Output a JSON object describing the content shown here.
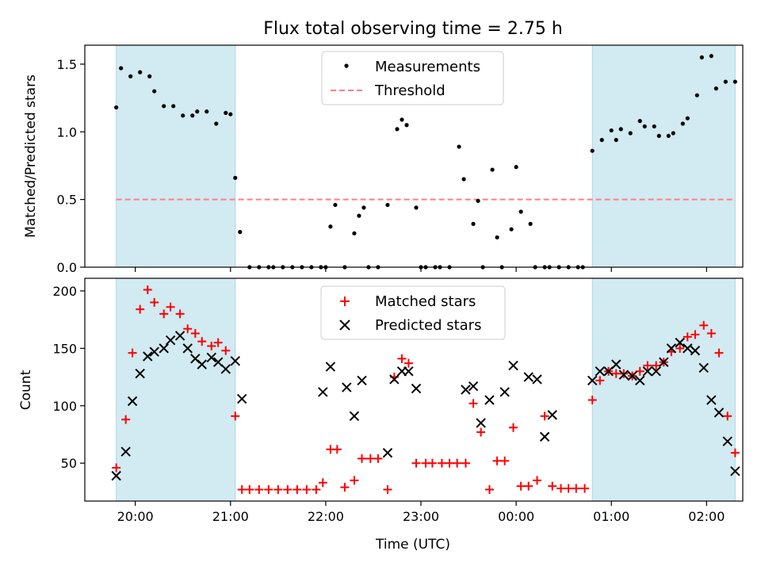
{
  "chart_data": [
    {
      "type": "scatter",
      "title": "Flux total observing time = 2.75 h",
      "xlabel": "",
      "ylabel": "Matched/Predicted stars",
      "xlim": [
        -0.53,
        6.38
      ],
      "ylim": [
        0,
        1.64
      ],
      "yticks": [
        0.0,
        0.5,
        1.0,
        1.5
      ],
      "ytick_labels": [
        "0.0",
        "0.5",
        "1.0",
        "1.5"
      ],
      "xticks": [
        0,
        1,
        2,
        3,
        4,
        5,
        6
      ],
      "grid": false,
      "legend_position": "upper center",
      "shaded_intervals": [
        [
          -0.2,
          1.05
        ],
        [
          4.8,
          6.3
        ]
      ],
      "shade_color": "#add8e6",
      "threshold": {
        "name": "Threshold",
        "value": 0.5,
        "x_range": [
          -0.2,
          6.3
        ],
        "color": "#ff7f7f",
        "style": "dashed"
      },
      "series": [
        {
          "name": "Measurements",
          "marker": "dot",
          "color": "#000000",
          "x": [
            -0.2,
            -0.15,
            -0.05,
            0.05,
            0.15,
            0.2,
            0.3,
            0.4,
            0.5,
            0.6,
            0.65,
            0.75,
            0.85,
            0.95,
            1.0,
            1.05,
            1.1,
            1.2,
            1.3,
            1.4,
            1.45,
            1.55,
            1.65,
            1.75,
            1.85,
            1.95,
            2.0,
            2.05,
            2.1,
            2.2,
            2.3,
            2.35,
            2.4,
            2.45,
            2.55,
            2.65,
            2.75,
            2.8,
            2.85,
            2.95,
            3.0,
            3.05,
            3.15,
            3.2,
            3.3,
            3.4,
            3.45,
            3.55,
            3.6,
            3.65,
            3.75,
            3.8,
            3.85,
            3.95,
            4.0,
            4.05,
            4.15,
            4.2,
            4.3,
            4.35,
            4.45,
            4.55,
            4.65,
            4.7,
            4.8,
            4.9,
            5.0,
            5.05,
            5.1,
            5.2,
            5.3,
            5.35,
            5.45,
            5.5,
            5.6,
            5.65,
            5.75,
            5.8,
            5.9,
            5.95,
            6.05,
            6.1,
            6.2,
            6.3
          ],
          "y": [
            1.18,
            1.47,
            1.41,
            1.44,
            1.41,
            1.3,
            1.19,
            1.19,
            1.12,
            1.12,
            1.15,
            1.15,
            1.06,
            1.14,
            1.13,
            0.66,
            0.26,
            0,
            0,
            0,
            0,
            0,
            0,
            0,
            0,
            0,
            0,
            0.3,
            0.46,
            0,
            0.25,
            0.38,
            0.44,
            0,
            0,
            0.46,
            1.02,
            1.09,
            1.05,
            0.44,
            0,
            0,
            0,
            0,
            0,
            0.89,
            0.65,
            0.32,
            0.49,
            0,
            0.72,
            0.22,
            0,
            0.28,
            0.74,
            0.41,
            0.32,
            0,
            0,
            0,
            0,
            0,
            0,
            0,
            0.86,
            0.94,
            1.01,
            0.94,
            1.02,
            0.99,
            1.08,
            1.04,
            1.04,
            0.97,
            0.97,
            0.99,
            1.06,
            1.1,
            1.27,
            1.55,
            1.56,
            1.32,
            1.37,
            1.37
          ]
        }
      ]
    },
    {
      "type": "scatter",
      "title": "",
      "xlabel": "Time (UTC)",
      "ylabel": "Count",
      "xlim": [
        -0.53,
        6.38
      ],
      "ylim": [
        17,
        211
      ],
      "yticks": [
        50,
        100,
        150,
        200
      ],
      "ytick_labels": [
        "50",
        "100",
        "150",
        "200"
      ],
      "xticks": [
        0,
        1,
        2,
        3,
        4,
        5,
        6
      ],
      "xtick_labels": [
        "20:00",
        "21:00",
        "22:00",
        "23:00",
        "00:00",
        "01:00",
        "02:00"
      ],
      "grid": false,
      "legend_position": "upper center",
      "shaded_intervals": [
        [
          -0.2,
          1.05
        ],
        [
          4.8,
          6.3
        ]
      ],
      "shade_color": "#add8e6",
      "series": [
        {
          "name": "Matched stars",
          "marker": "plus",
          "color": "#ff0000",
          "x": [
            -0.2,
            -0.1,
            -0.03,
            0.05,
            0.13,
            0.2,
            0.3,
            0.37,
            0.47,
            0.55,
            0.63,
            0.7,
            0.8,
            0.87,
            0.95,
            1.05,
            1.12,
            1.2,
            1.3,
            1.4,
            1.5,
            1.6,
            1.7,
            1.8,
            1.9,
            1.97,
            2.05,
            2.12,
            2.2,
            2.3,
            2.38,
            2.47,
            2.55,
            2.65,
            2.72,
            2.8,
            2.87,
            2.95,
            3.05,
            3.12,
            3.22,
            3.3,
            3.38,
            3.47,
            3.55,
            3.63,
            3.72,
            3.8,
            3.88,
            3.97,
            4.05,
            4.13,
            4.22,
            4.3,
            4.38,
            4.47,
            4.55,
            4.63,
            4.72,
            4.8,
            4.88,
            4.97,
            5.05,
            5.13,
            5.22,
            5.3,
            5.38,
            5.47,
            5.55,
            5.63,
            5.72,
            5.8,
            5.88,
            5.97,
            6.05,
            6.13,
            6.22,
            6.3
          ],
          "y": [
            46,
            88,
            146,
            184,
            201,
            190,
            180,
            186,
            180,
            167,
            163,
            156,
            152,
            155,
            148,
            91,
            27,
            27,
            27,
            27,
            27,
            27,
            27,
            27,
            27,
            33,
            62,
            62,
            29,
            35,
            54,
            54,
            54,
            27,
            125,
            141,
            137,
            50,
            50,
            50,
            50,
            50,
            50,
            50,
            102,
            77,
            27,
            52,
            52,
            81,
            30,
            30,
            35,
            91,
            30,
            28,
            28,
            28,
            28,
            105,
            122,
            130,
            128,
            128,
            126,
            130,
            135,
            135,
            138,
            147,
            150,
            160,
            162,
            170,
            163,
            146,
            91,
            59
          ]
        },
        {
          "name": "Predicted stars",
          "marker": "x",
          "color": "#000000",
          "x": [
            -0.2,
            -0.1,
            -0.03,
            0.05,
            0.13,
            0.2,
            0.3,
            0.37,
            0.47,
            0.55,
            0.63,
            0.7,
            0.8,
            0.87,
            0.95,
            1.05,
            1.12,
            1.97,
            2.05,
            2.22,
            2.3,
            2.38,
            2.65,
            2.72,
            2.8,
            2.87,
            2.95,
            3.47,
            3.55,
            3.63,
            3.72,
            3.88,
            3.97,
            4.13,
            4.22,
            4.3,
            4.38,
            4.8,
            4.88,
            4.97,
            5.05,
            5.13,
            5.22,
            5.3,
            5.38,
            5.47,
            5.55,
            5.63,
            5.72,
            5.8,
            5.88,
            5.97,
            6.05,
            6.13,
            6.22,
            6.3
          ],
          "y": [
            39,
            60,
            104,
            128,
            143,
            147,
            150,
            157,
            161,
            150,
            141,
            136,
            142,
            138,
            132,
            139,
            106,
            112,
            134,
            116,
            91,
            122,
            59,
            123,
            130,
            130,
            115,
            114,
            117,
            85,
            105,
            112,
            135,
            125,
            123,
            73,
            92,
            122,
            130,
            130,
            136,
            127,
            126,
            122,
            130,
            130,
            138,
            150,
            155,
            150,
            148,
            133,
            105,
            94,
            69,
            43
          ]
        }
      ]
    }
  ]
}
